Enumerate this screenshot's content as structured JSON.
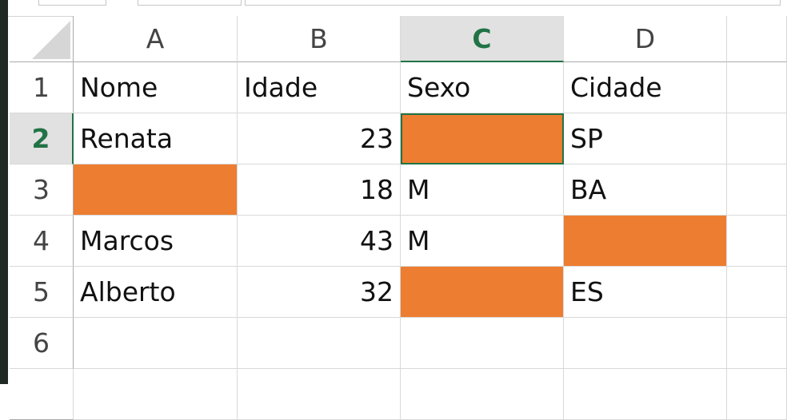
{
  "columns": [
    "A",
    "B",
    "C",
    "D"
  ],
  "selected_column": "C",
  "selected_row": 2,
  "rows": [
    {
      "n": "1",
      "cells": [
        {
          "v": "Nome"
        },
        {
          "v": "Idade"
        },
        {
          "v": "Sexo"
        },
        {
          "v": "Cidade"
        }
      ]
    },
    {
      "n": "2",
      "cells": [
        {
          "v": "Renata"
        },
        {
          "v": "23",
          "num": true
        },
        {
          "v": "",
          "fill": true
        },
        {
          "v": "SP"
        }
      ]
    },
    {
      "n": "3",
      "cells": [
        {
          "v": "",
          "fill": true
        },
        {
          "v": "18",
          "num": true
        },
        {
          "v": "M"
        },
        {
          "v": "BA"
        }
      ]
    },
    {
      "n": "4",
      "cells": [
        {
          "v": "Marcos"
        },
        {
          "v": "43",
          "num": true
        },
        {
          "v": "M"
        },
        {
          "v": "",
          "fill": true
        }
      ]
    },
    {
      "n": "5",
      "cells": [
        {
          "v": "Alberto"
        },
        {
          "v": "32",
          "num": true
        },
        {
          "v": "",
          "fill": true
        },
        {
          "v": "ES"
        }
      ]
    },
    {
      "n": "6",
      "cells": [
        {
          "v": ""
        },
        {
          "v": ""
        },
        {
          "v": ""
        },
        {
          "v": ""
        }
      ]
    }
  ],
  "colors": {
    "fill": "#ED7D31",
    "accent": "#217346"
  }
}
